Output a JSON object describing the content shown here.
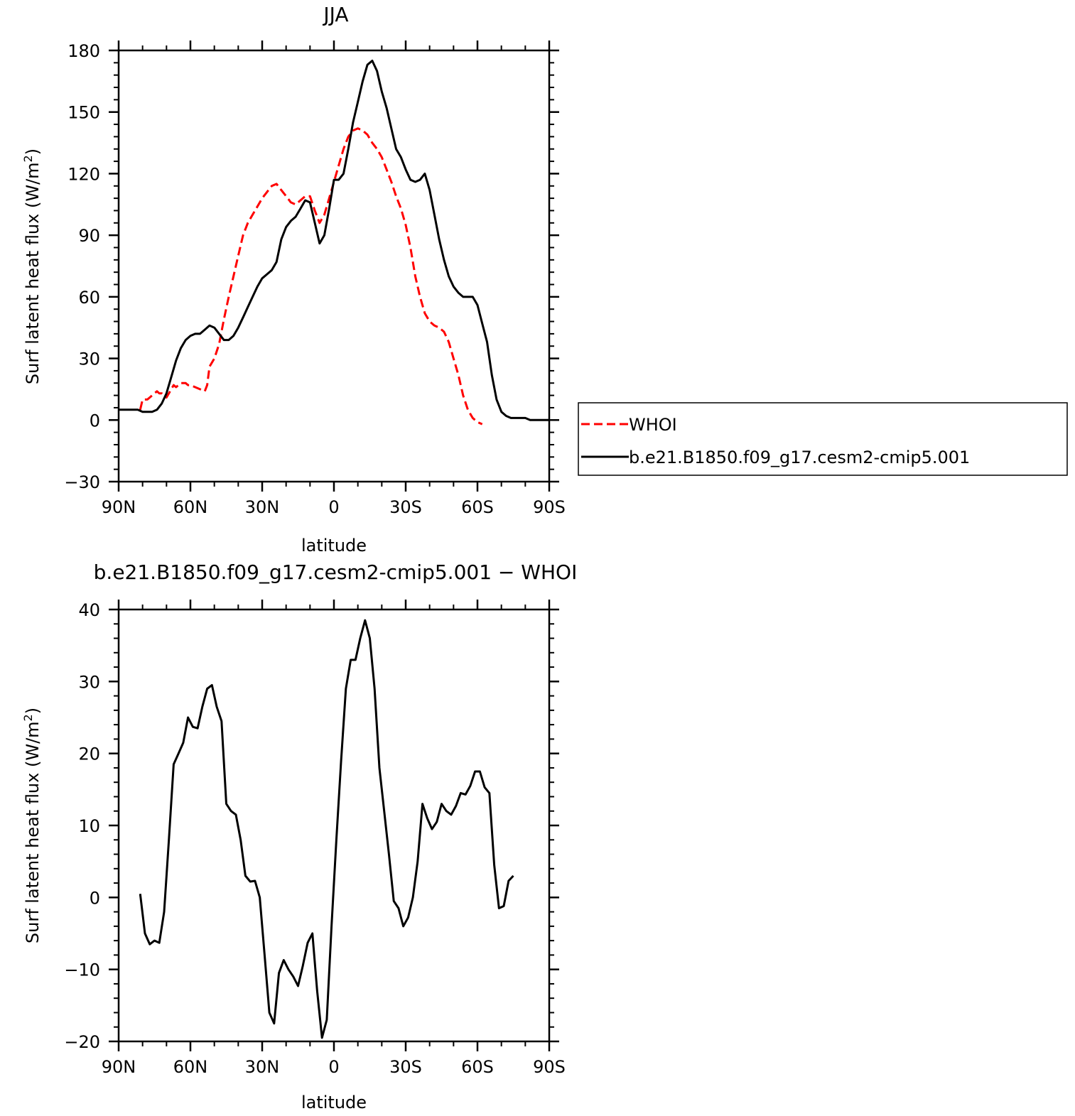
{
  "chart_data": [
    {
      "type": "line",
      "title": "JJA",
      "xlabel": "latitude",
      "ylabel_main": "Surf latent heat flux (W/m",
      "ylabel_sup": "2",
      "ylabel_close": ")",
      "xlim": [
        90,
        -90
      ],
      "ylim": [
        -30,
        180
      ],
      "x_ticks": [
        90,
        60,
        30,
        0,
        -30,
        -60,
        -90
      ],
      "x_tick_labels": [
        "90N",
        "60N",
        "30N",
        "0",
        "30S",
        "60S",
        "90S"
      ],
      "y_ticks": [
        -30,
        0,
        30,
        60,
        90,
        120,
        150,
        180
      ],
      "y_tick_labels": [
        "−30",
        "0",
        "30",
        "60",
        "90",
        "120",
        "150",
        "180"
      ],
      "legend_position": "right",
      "series": [
        {
          "name": "WHOI",
          "color": "#ff0000",
          "dash": "dashed",
          "points": [
            [
              81,
              5
            ],
            [
              80,
              10
            ],
            [
              79,
              10
            ],
            [
              78,
              10
            ],
            [
              77,
              11
            ],
            [
              76,
              12
            ],
            [
              75,
              13
            ],
            [
              74,
              14
            ],
            [
              73,
              13
            ],
            [
              72,
              13
            ],
            [
              71,
              12
            ],
            [
              70,
              11
            ],
            [
              69,
              13
            ],
            [
              68,
              15
            ],
            [
              67,
              17
            ],
            [
              66,
              16
            ],
            [
              65,
              17
            ],
            [
              64,
              18
            ],
            [
              63,
              18
            ],
            [
              62,
              18
            ],
            [
              61,
              17
            ],
            [
              60,
              17
            ],
            [
              58,
              16
            ],
            [
              56,
              15
            ],
            [
              54,
              14
            ],
            [
              53,
              17
            ],
            [
              52,
              26
            ],
            [
              50,
              30
            ],
            [
              48,
              37
            ],
            [
              46,
              49
            ],
            [
              44,
              60
            ],
            [
              42,
              70
            ],
            [
              40,
              80
            ],
            [
              38,
              90
            ],
            [
              36,
              96
            ],
            [
              34,
              100
            ],
            [
              32,
              104
            ],
            [
              30,
              108
            ],
            [
              28,
              111
            ],
            [
              26,
              114
            ],
            [
              24,
              115
            ],
            [
              22,
              112
            ],
            [
              20,
              109
            ],
            [
              18,
              106
            ],
            [
              16,
              105
            ],
            [
              14,
              107
            ],
            [
              12,
              109
            ],
            [
              10,
              109
            ],
            [
              8,
              102
            ],
            [
              6,
              96
            ],
            [
              4,
              100
            ],
            [
              2,
              108
            ],
            [
              0,
              116
            ],
            [
              -2,
              124
            ],
            [
              -4,
              132
            ],
            [
              -6,
              138
            ],
            [
              -8,
              141
            ],
            [
              -10,
              142
            ],
            [
              -12,
              141
            ],
            [
              -14,
              139
            ],
            [
              -16,
              135
            ],
            [
              -18,
              132
            ],
            [
              -20,
              128
            ],
            [
              -22,
              122
            ],
            [
              -24,
              116
            ],
            [
              -26,
              109
            ],
            [
              -28,
              103
            ],
            [
              -30,
              95
            ],
            [
              -32,
              84
            ],
            [
              -34,
              70
            ],
            [
              -36,
              60
            ],
            [
              -38,
              52
            ],
            [
              -40,
              48
            ],
            [
              -42,
              46
            ],
            [
              -44,
              45
            ],
            [
              -46,
              43
            ],
            [
              -48,
              38
            ],
            [
              -50,
              30
            ],
            [
              -52,
              22
            ],
            [
              -54,
              12
            ],
            [
              -56,
              5
            ],
            [
              -58,
              1
            ],
            [
              -60,
              -1
            ],
            [
              -62,
              -2
            ]
          ]
        },
        {
          "name": "b.e21.B1850.f09_g17.cesm2-cmip5.001",
          "color": "#000000",
          "dash": "solid",
          "points": [
            [
              90,
              5
            ],
            [
              88,
              5
            ],
            [
              86,
              5
            ],
            [
              84,
              5
            ],
            [
              82,
              5
            ],
            [
              80,
              4
            ],
            [
              78,
              4
            ],
            [
              76,
              4
            ],
            [
              74,
              5
            ],
            [
              72,
              8
            ],
            [
              70,
              13
            ],
            [
              68,
              21
            ],
            [
              66,
              29
            ],
            [
              64,
              35
            ],
            [
              62,
              39
            ],
            [
              60,
              41
            ],
            [
              58,
              42
            ],
            [
              56,
              42
            ],
            [
              54,
              44
            ],
            [
              52,
              46
            ],
            [
              50,
              45
            ],
            [
              48,
              42
            ],
            [
              46,
              39
            ],
            [
              44,
              39
            ],
            [
              42,
              41
            ],
            [
              40,
              45
            ],
            [
              38,
              50
            ],
            [
              36,
              55
            ],
            [
              34,
              60
            ],
            [
              32,
              65
            ],
            [
              30,
              69
            ],
            [
              28,
              71
            ],
            [
              26,
              73
            ],
            [
              24,
              77
            ],
            [
              22,
              88
            ],
            [
              20,
              94
            ],
            [
              18,
              97
            ],
            [
              16,
              99
            ],
            [
              14,
              103
            ],
            [
              12,
              107
            ],
            [
              10,
              106
            ],
            [
              8,
              96
            ],
            [
              6,
              86
            ],
            [
              4,
              90
            ],
            [
              2,
              103
            ],
            [
              0,
              117
            ],
            [
              -2,
              117
            ],
            [
              -4,
              120
            ],
            [
              -6,
              132
            ],
            [
              -8,
              145
            ],
            [
              -10,
              155
            ],
            [
              -12,
              165
            ],
            [
              -14,
              173
            ],
            [
              -16,
              175
            ],
            [
              -18,
              170
            ],
            [
              -20,
              160
            ],
            [
              -22,
              152
            ],
            [
              -24,
              142
            ],
            [
              -26,
              132
            ],
            [
              -28,
              128
            ],
            [
              -30,
              122
            ],
            [
              -32,
              117
            ],
            [
              -34,
              116
            ],
            [
              -36,
              117
            ],
            [
              -38,
              120
            ],
            [
              -40,
              112
            ],
            [
              -42,
              100
            ],
            [
              -44,
              88
            ],
            [
              -46,
              78
            ],
            [
              -48,
              70
            ],
            [
              -50,
              65
            ],
            [
              -52,
              62
            ],
            [
              -54,
              60
            ],
            [
              -56,
              60
            ],
            [
              -58,
              60
            ],
            [
              -60,
              56
            ],
            [
              -62,
              47
            ],
            [
              -64,
              38
            ],
            [
              -66,
              22
            ],
            [
              -68,
              10
            ],
            [
              -70,
              4
            ],
            [
              -72,
              2
            ],
            [
              -74,
              1
            ],
            [
              -76,
              1
            ],
            [
              -78,
              1
            ],
            [
              -80,
              1
            ],
            [
              -82,
              0
            ],
            [
              -84,
              0
            ],
            [
              -86,
              0
            ],
            [
              -88,
              0
            ],
            [
              -90,
              0
            ]
          ]
        }
      ]
    },
    {
      "type": "line",
      "title": "b.e21.B1850.f09_g17.cesm2-cmip5.001 − WHOI",
      "xlabel": "latitude",
      "ylabel_main": "Surf latent heat flux (W/m",
      "ylabel_sup": "2",
      "ylabel_close": ")",
      "xlim": [
        90,
        -90
      ],
      "ylim": [
        -20,
        40
      ],
      "x_ticks": [
        90,
        60,
        30,
        0,
        -30,
        -60,
        -90
      ],
      "x_tick_labels": [
        "90N",
        "60N",
        "30N",
        "0",
        "30S",
        "60S",
        "90S"
      ],
      "y_ticks": [
        -20,
        -10,
        0,
        10,
        20,
        30,
        40
      ],
      "y_tick_labels": [
        "−20",
        "−10",
        "0",
        "10",
        "20",
        "30",
        "40"
      ],
      "series": [
        {
          "color": "#000000",
          "dash": "solid",
          "points": [
            [
              81,
              0.5
            ],
            [
              79,
              -5
            ],
            [
              77,
              -6.5
            ],
            [
              75,
              -6
            ],
            [
              73,
              -6.3
            ],
            [
              71,
              -2
            ],
            [
              69,
              8
            ],
            [
              67,
              18.5
            ],
            [
              65,
              20
            ],
            [
              63,
              21.5
            ],
            [
              61,
              25
            ],
            [
              59,
              23.7
            ],
            [
              57,
              23.5
            ],
            [
              55,
              26.5
            ],
            [
              53,
              29
            ],
            [
              51,
              29.5
            ],
            [
              49,
              26.5
            ],
            [
              47,
              24.5
            ],
            [
              45,
              13
            ],
            [
              43,
              12
            ],
            [
              41,
              11.5
            ],
            [
              39,
              8
            ],
            [
              37,
              3
            ],
            [
              35,
              2.2
            ],
            [
              33,
              2.3
            ],
            [
              31,
              0
            ],
            [
              29,
              -8
            ],
            [
              27,
              -16
            ],
            [
              25,
              -17.5
            ],
            [
              23,
              -10.5
            ],
            [
              21,
              -8.7
            ],
            [
              19,
              -10
            ],
            [
              17,
              -11
            ],
            [
              15,
              -12.3
            ],
            [
              13,
              -9.5
            ],
            [
              11,
              -6.3
            ],
            [
              9,
              -5
            ],
            [
              7,
              -13
            ],
            [
              5,
              -19.5
            ],
            [
              3,
              -17
            ],
            [
              1,
              -4
            ],
            [
              -1,
              8
            ],
            [
              -3,
              19
            ],
            [
              -5,
              29
            ],
            [
              -7,
              33
            ],
            [
              -9,
              33
            ],
            [
              -11,
              36
            ],
            [
              -13,
              38.5
            ],
            [
              -15,
              36
            ],
            [
              -17,
              29
            ],
            [
              -19,
              18
            ],
            [
              -21,
              12
            ],
            [
              -23,
              6
            ],
            [
              -25,
              -0.5
            ],
            [
              -27,
              -1.5
            ],
            [
              -29,
              -4
            ],
            [
              -31,
              -2.8
            ],
            [
              -33,
              0
            ],
            [
              -35,
              5
            ],
            [
              -37,
              13
            ],
            [
              -39,
              11
            ],
            [
              -41,
              9.5
            ],
            [
              -43,
              10.5
            ],
            [
              -45,
              13
            ],
            [
              -47,
              12
            ],
            [
              -49,
              11.5
            ],
            [
              -51,
              12.7
            ],
            [
              -53,
              14.5
            ],
            [
              -55,
              14.3
            ],
            [
              -57,
              15.5
            ],
            [
              -59,
              17.5
            ],
            [
              -61,
              17.5
            ],
            [
              -63,
              15.3
            ],
            [
              -65,
              14.5
            ],
            [
              -67,
              4.5
            ],
            [
              -69,
              -1.5
            ],
            [
              -71,
              -1.2
            ],
            [
              -73,
              2.3
            ],
            [
              -75,
              3
            ]
          ]
        }
      ]
    }
  ],
  "legend": {
    "items": [
      {
        "label": "WHOI",
        "color": "#ff0000",
        "dash": "dashed"
      },
      {
        "label": "b.e21.B1850.f09_g17.cesm2-cmip5.001",
        "color": "#000000",
        "dash": "solid"
      }
    ]
  }
}
